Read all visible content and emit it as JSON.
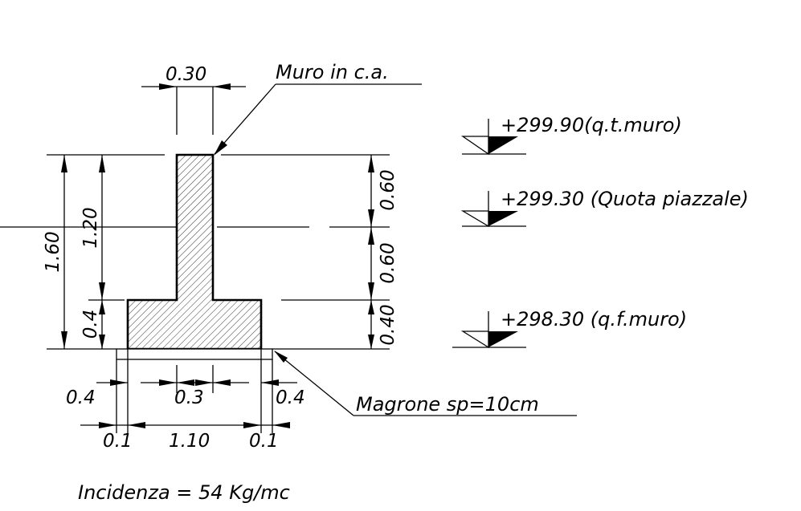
{
  "callouts": {
    "wall": "Muro in c.a.",
    "lean_concrete": "Magrone sp=10cm"
  },
  "elevations": {
    "top_wall": "+299.90(q.t.muro)",
    "yard": "+299.30 (Quota piazzale)",
    "foundation_base": "+298.30 (q.f.muro)"
  },
  "dimensions": {
    "wall_thickness": "0.30",
    "total_height": "1.60",
    "stem_height": "1.20",
    "footing_height_left": "0.4",
    "right_upper": "0.60",
    "right_middle": "0.60",
    "right_lower": "0.40",
    "toe_width": "0.4",
    "stem_width_bottom": "0.3",
    "heel_width": "0.4",
    "magrone_left_offset": "0.1",
    "footing_width": "1.10",
    "magrone_right_offset": "0.1"
  },
  "note": "Incidenza = 54 Kg/mc",
  "colors": {
    "line": "#000000",
    "background": "#ffffff",
    "hatch": "#000000"
  }
}
